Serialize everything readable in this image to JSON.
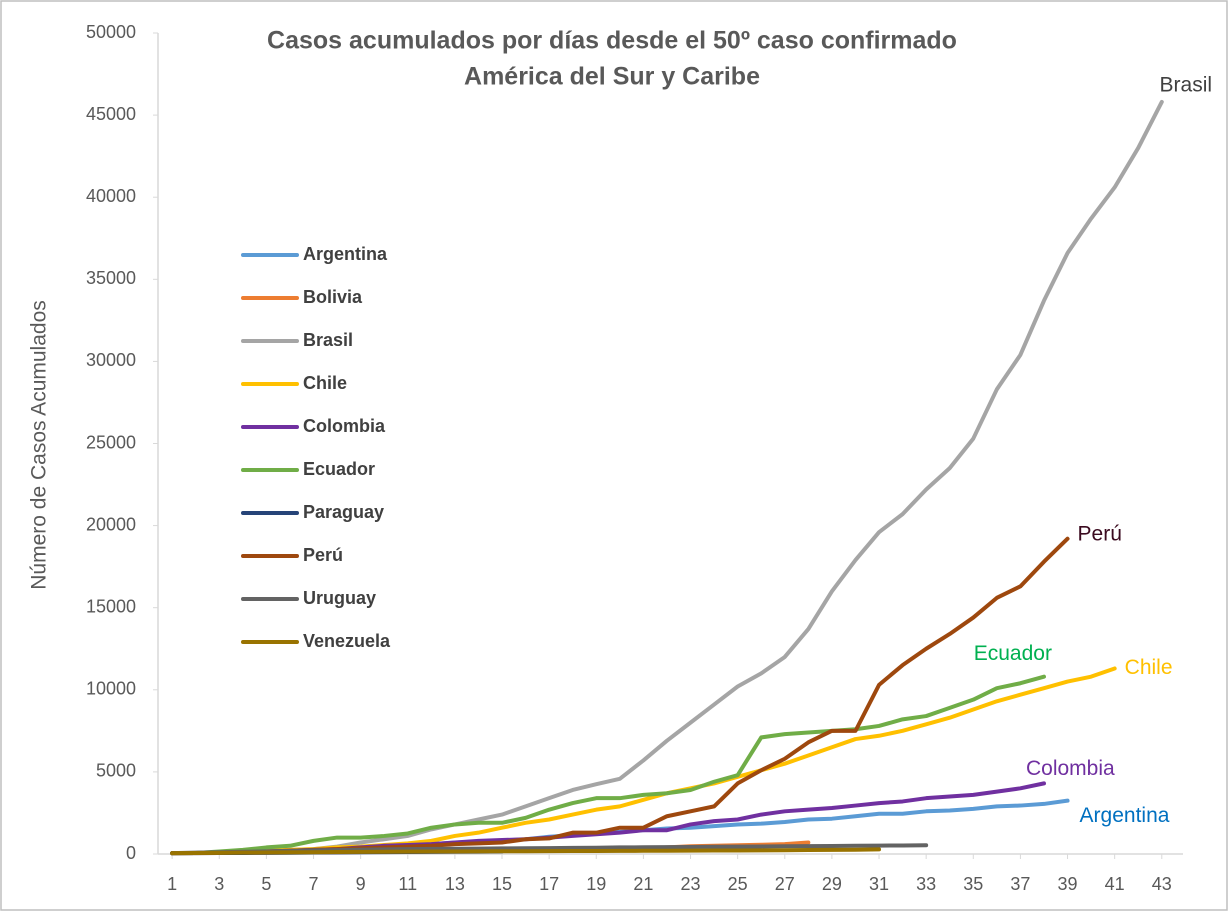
{
  "chart_data": {
    "type": "line",
    "title": "Casos acumulados por días desde el 50º caso confirmado",
    "subtitle": "América del Sur y Caribe",
    "y_label": "Número de Casos Acumulados",
    "x": [
      1,
      2,
      3,
      4,
      5,
      6,
      7,
      8,
      9,
      10,
      11,
      12,
      13,
      14,
      15,
      16,
      17,
      18,
      19,
      20,
      21,
      22,
      23,
      24,
      25,
      26,
      27,
      28,
      29,
      30,
      31,
      32,
      33,
      34,
      35,
      36,
      37,
      38,
      39,
      40,
      41,
      42,
      43
    ],
    "xlim": [
      0.4,
      43.9
    ],
    "xticks": [
      1,
      3,
      5,
      7,
      9,
      11,
      13,
      15,
      17,
      19,
      21,
      23,
      25,
      27,
      29,
      31,
      33,
      35,
      37,
      39,
      41,
      43
    ],
    "ylim": [
      0,
      50000
    ],
    "yticks": [
      0,
      5000,
      10000,
      15000,
      20000,
      25000,
      30000,
      35000,
      40000,
      45000,
      50000
    ],
    "grid": false,
    "legend": "upper left",
    "series": [
      {
        "name": "Argentina",
        "color": "#5b9bd5",
        "label_color": "#0070c0",
        "values": [
          50,
          60,
          80,
          100,
          130,
          160,
          200,
          260,
          300,
          380,
          500,
          600,
          690,
          750,
          820,
          900,
          1050,
          1150,
          1250,
          1350,
          1450,
          1550,
          1600,
          1700,
          1800,
          1850,
          1950,
          2100,
          2150,
          2300,
          2450,
          2450,
          2600,
          2650,
          2750,
          2900,
          2950,
          3050,
          3250,
          null,
          null,
          null,
          null
        ]
      },
      {
        "name": "Bolivia",
        "color": "#ed7d31",
        "values": [
          50,
          55,
          60,
          70,
          80,
          90,
          100,
          110,
          120,
          130,
          140,
          150,
          160,
          180,
          200,
          210,
          220,
          260,
          270,
          300,
          330,
          400,
          470,
          500,
          530,
          560,
          600,
          700,
          null,
          null,
          null,
          null,
          null,
          null,
          null,
          null,
          null,
          null,
          null,
          null,
          null,
          null,
          null
        ]
      },
      {
        "name": "Brasil",
        "color": "#a5a5a5",
        "label_color": "#404040",
        "values": [
          50,
          60,
          100,
          150,
          200,
          250,
          300,
          450,
          700,
          900,
          1100,
          1500,
          1800,
          2100,
          2400,
          2900,
          3400,
          3900,
          4250,
          4580,
          5700,
          6900,
          8000,
          9100,
          10200,
          11000,
          12000,
          13700,
          16000,
          17900,
          19600,
          20700,
          22200,
          23500,
          25300,
          28300,
          30400,
          33700,
          36600,
          38700,
          40600,
          43000,
          45800
        ]
      },
      {
        "name": "Chile",
        "color": "#ffc000",
        "label_color": "#ffc000",
        "values": [
          50,
          60,
          80,
          150,
          200,
          250,
          300,
          400,
          450,
          550,
          650,
          800,
          1100,
          1300,
          1600,
          1900,
          2100,
          2400,
          2700,
          2900,
          3300,
          3700,
          4000,
          4300,
          4700,
          5100,
          5500,
          6000,
          6500,
          7000,
          7200,
          7500,
          7900,
          8300,
          8800,
          9300,
          9700,
          10100,
          10500,
          10800,
          11300,
          null,
          null
        ]
      },
      {
        "name": "Colombia",
        "color": "#7030a0",
        "label_color": "#7030a0",
        "values": [
          50,
          60,
          80,
          100,
          150,
          200,
          250,
          300,
          400,
          500,
          550,
          600,
          700,
          800,
          850,
          900,
          1000,
          1100,
          1200,
          1300,
          1450,
          1450,
          1800,
          2000,
          2100,
          2400,
          2600,
          2700,
          2800,
          2950,
          3100,
          3200,
          3400,
          3500,
          3600,
          3800,
          4000,
          4300,
          null,
          null,
          null,
          null,
          null
        ]
      },
      {
        "name": "Ecuador",
        "color": "#70ad47",
        "label_color": "#00b050",
        "values": [
          50,
          60,
          150,
          250,
          400,
          500,
          800,
          1000,
          1000,
          1100,
          1250,
          1600,
          1800,
          1900,
          1900,
          2200,
          2700,
          3100,
          3400,
          3400,
          3600,
          3700,
          3900,
          4400,
          4800,
          7100,
          7300,
          7400,
          7500,
          7600,
          7800,
          8200,
          8400,
          8900,
          9400,
          10100,
          10400,
          10800,
          null,
          null,
          null,
          null,
          null
        ]
      },
      {
        "name": "Paraguay",
        "color": "#264478",
        "values": [
          50,
          56,
          59,
          64,
          69,
          77,
          92,
          96,
          104,
          113,
          119,
          129,
          134,
          147,
          159,
          null,
          null,
          null,
          null,
          null,
          null,
          null,
          null,
          null,
          null,
          null,
          null,
          null,
          null,
          null,
          null,
          null,
          null,
          null,
          null,
          null,
          null,
          null,
          null,
          null,
          null,
          null,
          null
        ]
      },
      {
        "name": "Perú",
        "color": "#9e480e",
        "label_color": "#3b0a1f",
        "values": [
          50,
          60,
          80,
          100,
          150,
          200,
          250,
          300,
          350,
          400,
          450,
          500,
          600,
          650,
          700,
          900,
          950,
          1300,
          1300,
          1600,
          1600,
          2300,
          2600,
          2900,
          4300,
          5100,
          5800,
          6800,
          7500,
          7500,
          10300,
          11500,
          12500,
          13400,
          14400,
          15600,
          16300,
          17800,
          19200,
          null,
          null,
          null,
          null
        ]
      },
      {
        "name": "Uruguay",
        "color": "#636363",
        "values": [
          50,
          80,
          110,
          135,
          160,
          190,
          220,
          240,
          260,
          280,
          300,
          310,
          320,
          330,
          340,
          350,
          360,
          370,
          380,
          400,
          410,
          420,
          430,
          440,
          450,
          460,
          470,
          480,
          490,
          500,
          510,
          520,
          530,
          null,
          null,
          null,
          null,
          null,
          null,
          null,
          null,
          null,
          null
        ]
      },
      {
        "name": "Venezuela",
        "color": "#997300",
        "values": [
          50,
          60,
          70,
          80,
          90,
          100,
          110,
          120,
          130,
          140,
          145,
          150,
          155,
          160,
          165,
          170,
          175,
          180,
          185,
          190,
          195,
          200,
          205,
          210,
          215,
          220,
          230,
          240,
          250,
          260,
          280,
          null,
          null,
          null,
          null,
          null,
          null,
          null,
          null,
          null,
          null,
          null,
          null
        ]
      }
    ]
  }
}
